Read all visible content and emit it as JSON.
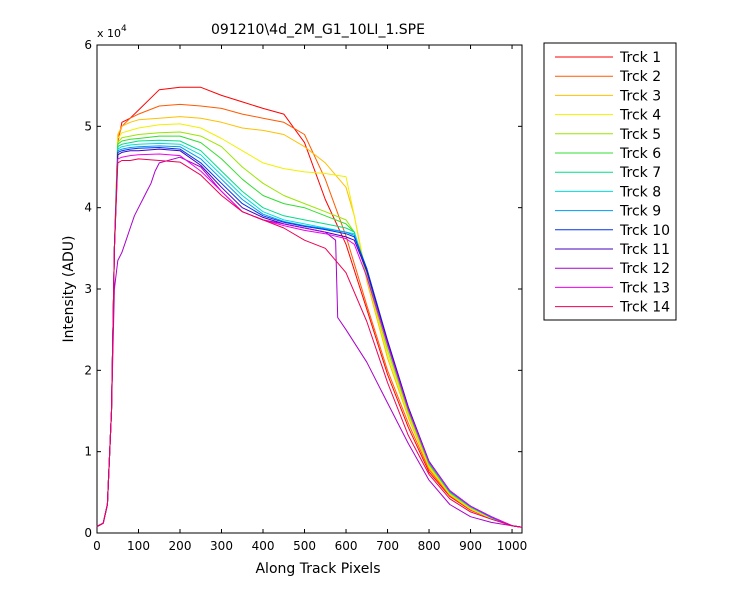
{
  "chart_data": {
    "type": "line",
    "title": "091210\\4d_2M_G1_10LI_1.SPE",
    "xlabel": "Along Track Pixels",
    "ylabel": "Intensity (ADU)",
    "y_multiplier_label": "x 10",
    "y_multiplier_exponent": "4",
    "y_scale": 10000,
    "xlim": [
      0,
      1024
    ],
    "ylim": [
      0,
      6
    ],
    "xticks": [
      0,
      100,
      200,
      300,
      400,
      500,
      600,
      700,
      800,
      900,
      1000
    ],
    "yticks": [
      0,
      1,
      2,
      3,
      4,
      5,
      6
    ],
    "grid": false,
    "legend_position": "outside-right",
    "series": [
      {
        "name": "Trck 1",
        "color": "#ff0000",
        "x": [
          0,
          15,
          25,
          35,
          42,
          50,
          60,
          80,
          100,
          150,
          200,
          250,
          300,
          350,
          400,
          450,
          500,
          550,
          600,
          650,
          700,
          750,
          800,
          850,
          900,
          950,
          1000,
          1024
        ],
        "y": [
          0.08,
          0.12,
          0.35,
          1.5,
          3.5,
          4.8,
          5.05,
          5.1,
          5.2,
          5.45,
          5.48,
          5.48,
          5.38,
          5.3,
          5.22,
          5.15,
          4.8,
          4.1,
          3.55,
          2.75,
          1.95,
          1.3,
          0.75,
          0.45,
          0.28,
          0.18,
          0.09,
          0.07
        ]
      },
      {
        "name": "Trck 2",
        "color": "#ff5a00",
        "x": [
          0,
          15,
          25,
          35,
          42,
          50,
          60,
          80,
          100,
          150,
          200,
          250,
          300,
          350,
          400,
          450,
          500,
          550,
          600,
          650,
          700,
          750,
          800,
          850,
          900,
          950,
          1000,
          1024
        ],
        "y": [
          0.08,
          0.12,
          0.35,
          1.5,
          3.5,
          4.85,
          5.0,
          5.1,
          5.15,
          5.25,
          5.27,
          5.25,
          5.22,
          5.15,
          5.1,
          5.05,
          4.9,
          4.35,
          3.65,
          2.8,
          2.0,
          1.35,
          0.78,
          0.46,
          0.29,
          0.18,
          0.09,
          0.07
        ]
      },
      {
        "name": "Trck 3",
        "color": "#ffbf00",
        "x": [
          0,
          15,
          25,
          35,
          42,
          50,
          60,
          80,
          100,
          150,
          200,
          250,
          300,
          350,
          400,
          450,
          500,
          550,
          600,
          620,
          650,
          700,
          750,
          800,
          850,
          900,
          950,
          1000,
          1024
        ],
        "y": [
          0.08,
          0.12,
          0.35,
          1.5,
          3.5,
          4.9,
          5.0,
          5.05,
          5.08,
          5.1,
          5.12,
          5.1,
          5.05,
          4.98,
          4.95,
          4.9,
          4.75,
          4.55,
          4.25,
          3.9,
          3.1,
          2.15,
          1.42,
          0.8,
          0.47,
          0.29,
          0.18,
          0.09,
          0.07
        ]
      },
      {
        "name": "Trck 4",
        "color": "#f0f000",
        "x": [
          0,
          15,
          25,
          35,
          42,
          50,
          60,
          80,
          100,
          150,
          200,
          250,
          300,
          350,
          400,
          450,
          500,
          550,
          600,
          620,
          650,
          700,
          750,
          800,
          850,
          900,
          950,
          1000,
          1024
        ],
        "y": [
          0.08,
          0.12,
          0.35,
          1.5,
          3.5,
          4.85,
          4.92,
          4.95,
          4.98,
          5.02,
          5.03,
          4.98,
          4.85,
          4.7,
          4.55,
          4.48,
          4.44,
          4.42,
          4.38,
          3.9,
          3.15,
          2.2,
          1.45,
          0.82,
          0.48,
          0.3,
          0.18,
          0.09,
          0.07
        ]
      },
      {
        "name": "Trck 5",
        "color": "#99e600",
        "x": [
          0,
          15,
          25,
          35,
          42,
          50,
          60,
          80,
          100,
          150,
          200,
          250,
          300,
          350,
          400,
          450,
          500,
          550,
          600,
          620,
          650,
          700,
          750,
          800,
          850,
          900,
          950,
          1000,
          1024
        ],
        "y": [
          0.08,
          0.12,
          0.35,
          1.5,
          3.5,
          4.8,
          4.86,
          4.88,
          4.9,
          4.92,
          4.93,
          4.88,
          4.75,
          4.5,
          4.3,
          4.15,
          4.05,
          3.95,
          3.85,
          3.7,
          3.15,
          2.25,
          1.48,
          0.84,
          0.49,
          0.31,
          0.19,
          0.09,
          0.07
        ]
      },
      {
        "name": "Trck 6",
        "color": "#33dd33",
        "x": [
          0,
          15,
          25,
          35,
          42,
          50,
          60,
          80,
          100,
          150,
          200,
          250,
          300,
          350,
          400,
          450,
          500,
          550,
          600,
          620,
          650,
          700,
          750,
          800,
          850,
          900,
          950,
          1000,
          1024
        ],
        "y": [
          0.08,
          0.12,
          0.35,
          1.5,
          3.5,
          4.78,
          4.82,
          4.84,
          4.85,
          4.88,
          4.88,
          4.8,
          4.6,
          4.35,
          4.15,
          4.05,
          4.0,
          3.9,
          3.8,
          3.7,
          3.2,
          2.3,
          1.5,
          0.85,
          0.5,
          0.32,
          0.19,
          0.09,
          0.07
        ]
      },
      {
        "name": "Trck 7",
        "color": "#00dd88",
        "x": [
          0,
          15,
          25,
          35,
          42,
          50,
          60,
          80,
          100,
          150,
          200,
          250,
          300,
          350,
          400,
          450,
          500,
          550,
          600,
          620,
          650,
          700,
          750,
          800,
          850,
          900,
          950,
          1000,
          1024
        ],
        "y": [
          0.08,
          0.12,
          0.35,
          1.5,
          3.5,
          4.75,
          4.78,
          4.8,
          4.82,
          4.83,
          4.82,
          4.7,
          4.45,
          4.2,
          4.0,
          3.9,
          3.85,
          3.8,
          3.75,
          3.7,
          3.22,
          2.32,
          1.52,
          0.86,
          0.5,
          0.32,
          0.19,
          0.09,
          0.07
        ]
      },
      {
        "name": "Trck 8",
        "color": "#00dddd",
        "x": [
          0,
          15,
          25,
          35,
          42,
          50,
          60,
          80,
          100,
          150,
          200,
          250,
          300,
          350,
          400,
          450,
          500,
          550,
          600,
          620,
          650,
          700,
          750,
          800,
          850,
          900,
          950,
          1000,
          1024
        ],
        "y": [
          0.08,
          0.12,
          0.35,
          1.5,
          3.5,
          4.72,
          4.75,
          4.77,
          4.78,
          4.79,
          4.78,
          4.65,
          4.4,
          4.15,
          3.95,
          3.85,
          3.8,
          3.75,
          3.7,
          3.68,
          3.25,
          2.35,
          1.53,
          0.87,
          0.51,
          0.32,
          0.19,
          0.09,
          0.07
        ]
      },
      {
        "name": "Trck 9",
        "color": "#0099ee",
        "x": [
          0,
          15,
          25,
          35,
          42,
          50,
          60,
          80,
          100,
          150,
          200,
          250,
          300,
          350,
          400,
          450,
          500,
          550,
          600,
          620,
          650,
          700,
          750,
          800,
          850,
          900,
          950,
          1000,
          1024
        ],
        "y": [
          0.08,
          0.12,
          0.35,
          1.5,
          3.5,
          4.7,
          4.72,
          4.74,
          4.75,
          4.76,
          4.75,
          4.6,
          4.35,
          4.1,
          3.92,
          3.83,
          3.78,
          3.74,
          3.7,
          3.66,
          3.25,
          2.36,
          1.54,
          0.88,
          0.51,
          0.33,
          0.19,
          0.09,
          0.07
        ]
      },
      {
        "name": "Trck 10",
        "color": "#0033ee",
        "x": [
          0,
          15,
          25,
          35,
          42,
          50,
          60,
          80,
          100,
          150,
          200,
          250,
          300,
          350,
          400,
          450,
          500,
          550,
          600,
          620,
          650,
          700,
          750,
          800,
          850,
          900,
          950,
          1000,
          1024
        ],
        "y": [
          0.08,
          0.12,
          0.35,
          1.5,
          3.5,
          4.68,
          4.7,
          4.72,
          4.73,
          4.74,
          4.72,
          4.55,
          4.3,
          4.05,
          3.9,
          3.82,
          3.77,
          3.73,
          3.68,
          3.64,
          3.25,
          2.37,
          1.55,
          0.88,
          0.52,
          0.33,
          0.2,
          0.09,
          0.07
        ]
      },
      {
        "name": "Trck 11",
        "color": "#4400bb",
        "x": [
          0,
          15,
          25,
          35,
          42,
          50,
          60,
          80,
          100,
          150,
          200,
          250,
          300,
          350,
          400,
          450,
          500,
          550,
          600,
          620,
          650,
          700,
          750,
          800,
          850,
          900,
          950,
          1000,
          1024
        ],
        "y": [
          0.08,
          0.12,
          0.35,
          1.5,
          3.5,
          4.65,
          4.68,
          4.7,
          4.7,
          4.72,
          4.7,
          4.52,
          4.25,
          4.0,
          3.88,
          3.8,
          3.75,
          3.7,
          3.64,
          3.6,
          3.22,
          2.36,
          1.54,
          0.88,
          0.52,
          0.33,
          0.2,
          0.09,
          0.07
        ]
      },
      {
        "name": "Trck 12",
        "color": "#aa00cc",
        "x": [
          0,
          15,
          25,
          35,
          42,
          50,
          60,
          70,
          80,
          90,
          100,
          110,
          120,
          130,
          140,
          150,
          200,
          250,
          300,
          350,
          400,
          450,
          500,
          550,
          575,
          580,
          600,
          650,
          700,
          750,
          800,
          850,
          900,
          950,
          1000,
          1024
        ],
        "y": [
          0.08,
          0.12,
          0.35,
          1.5,
          3.0,
          3.35,
          3.45,
          3.6,
          3.75,
          3.9,
          4.0,
          4.1,
          4.2,
          4.3,
          4.45,
          4.55,
          4.62,
          4.5,
          4.2,
          3.95,
          3.85,
          3.8,
          3.75,
          3.7,
          3.6,
          2.65,
          2.5,
          2.1,
          1.6,
          1.1,
          0.65,
          0.35,
          0.2,
          0.13,
          0.09,
          0.07
        ]
      },
      {
        "name": "Trck 13",
        "color": "#ee00ee",
        "x": [
          0,
          15,
          25,
          35,
          42,
          50,
          60,
          80,
          100,
          150,
          200,
          250,
          300,
          350,
          400,
          450,
          500,
          550,
          600,
          620,
          650,
          700,
          750,
          800,
          850,
          900,
          950,
          1000,
          1024
        ],
        "y": [
          0.08,
          0.12,
          0.35,
          1.5,
          3.5,
          4.6,
          4.62,
          4.64,
          4.65,
          4.66,
          4.64,
          4.45,
          4.2,
          3.95,
          3.85,
          3.78,
          3.72,
          3.68,
          3.62,
          3.55,
          3.15,
          2.32,
          1.52,
          0.87,
          0.52,
          0.33,
          0.2,
          0.09,
          0.07
        ]
      },
      {
        "name": "Trck 14",
        "color": "#ee0055",
        "x": [
          0,
          15,
          25,
          35,
          42,
          50,
          60,
          80,
          100,
          150,
          200,
          250,
          300,
          350,
          400,
          450,
          500,
          550,
          600,
          650,
          700,
          750,
          800,
          850,
          900,
          950,
          1000,
          1024
        ],
        "y": [
          0.08,
          0.12,
          0.35,
          1.5,
          3.5,
          4.55,
          4.58,
          4.58,
          4.6,
          4.58,
          4.56,
          4.4,
          4.15,
          3.95,
          3.85,
          3.75,
          3.6,
          3.5,
          3.2,
          2.6,
          1.85,
          1.2,
          0.72,
          0.42,
          0.26,
          0.17,
          0.09,
          0.07
        ]
      }
    ]
  }
}
